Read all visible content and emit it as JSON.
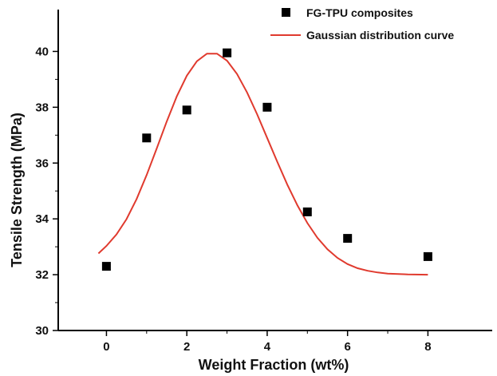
{
  "chart_data": {
    "type": "scatter",
    "xlabel": "Weight Fraction (wt%)",
    "ylabel": "Tensile Strength (MPa)",
    "xlim": [
      -1.2,
      9.6
    ],
    "ylim": [
      30,
      41.5
    ],
    "xticks": [
      0,
      2,
      4,
      6,
      8
    ],
    "yticks": [
      30,
      32,
      34,
      36,
      38,
      40
    ],
    "grid": false,
    "legend_position": "top-right",
    "series": [
      {
        "name": "FG-TPU composites",
        "kind": "scatter",
        "marker": "square",
        "color": "#000000",
        "x": [
          0,
          1,
          2,
          3,
          4,
          5,
          6,
          8
        ],
        "y": [
          32.3,
          36.9,
          37.9,
          39.95,
          38.0,
          34.25,
          33.3,
          32.65
        ]
      },
      {
        "name": "Gaussian distribution curve",
        "kind": "line",
        "color": "#e03a2e",
        "x": [
          -0.2,
          0,
          0.25,
          0.5,
          0.75,
          1,
          1.25,
          1.5,
          1.75,
          2,
          2.25,
          2.5,
          2.75,
          3,
          3.25,
          3.5,
          3.75,
          4,
          4.25,
          4.5,
          4.75,
          5,
          5.25,
          5.5,
          5.75,
          6,
          6.25,
          6.5,
          6.75,
          7,
          7.5,
          8
        ],
        "y": [
          32.76,
          33.03,
          33.44,
          33.99,
          34.71,
          35.57,
          36.52,
          37.49,
          38.39,
          39.13,
          39.65,
          39.92,
          39.92,
          39.67,
          39.19,
          38.53,
          37.75,
          36.9,
          36.05,
          35.23,
          34.49,
          33.85,
          33.32,
          32.91,
          32.6,
          32.38,
          32.23,
          32.14,
          32.08,
          32.04,
          32.01,
          32.0
        ]
      }
    ]
  }
}
